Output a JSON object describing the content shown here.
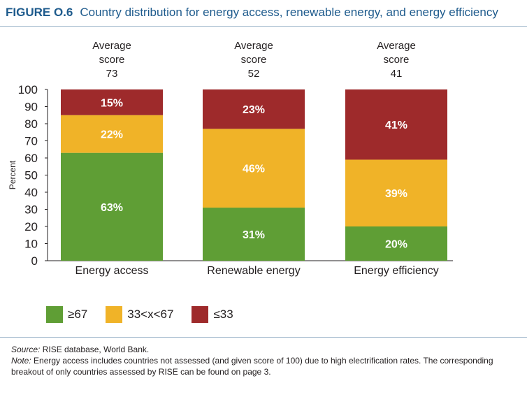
{
  "figure": {
    "number": "FIGURE O.6",
    "title": "Country distribution for energy access, renewable energy, and energy efficiency"
  },
  "chart_data": {
    "type": "bar",
    "stacked": true,
    "categories": [
      "Energy access",
      "Renewable energy",
      "Energy efficiency"
    ],
    "series": [
      {
        "name": "≥67",
        "color": "#5f9e35",
        "values": [
          63,
          31,
          20
        ],
        "labels": [
          "63%",
          "31%",
          "20%"
        ]
      },
      {
        "name": "33<x<67",
        "color": "#f0b328",
        "values": [
          22,
          46,
          39
        ],
        "labels": [
          "22%",
          "46%",
          "39%"
        ]
      },
      {
        "name": "≤33",
        "color": "#9e2a2b",
        "values": [
          15,
          23,
          41
        ],
        "labels": [
          "15%",
          "23%",
          "41%"
        ]
      }
    ],
    "average_score_label": [
      "Average",
      "score"
    ],
    "average_scores": [
      "73",
      "52",
      "41"
    ],
    "ylabel": "Percent",
    "ylim": [
      0,
      100
    ],
    "yticks": [
      0,
      10,
      20,
      30,
      40,
      50,
      60,
      70,
      80,
      90,
      100
    ],
    "grid": false,
    "legend_position": "bottom-left"
  },
  "footer": {
    "source_label": "Source:",
    "source_text": "RISE database, World Bank.",
    "note_label": "Note:",
    "note_text": "Energy access includes countries not assessed (and given score of 100) due to high electrification rates. The corresponding breakout of only countries assessed by RISE can be found on page 3."
  }
}
